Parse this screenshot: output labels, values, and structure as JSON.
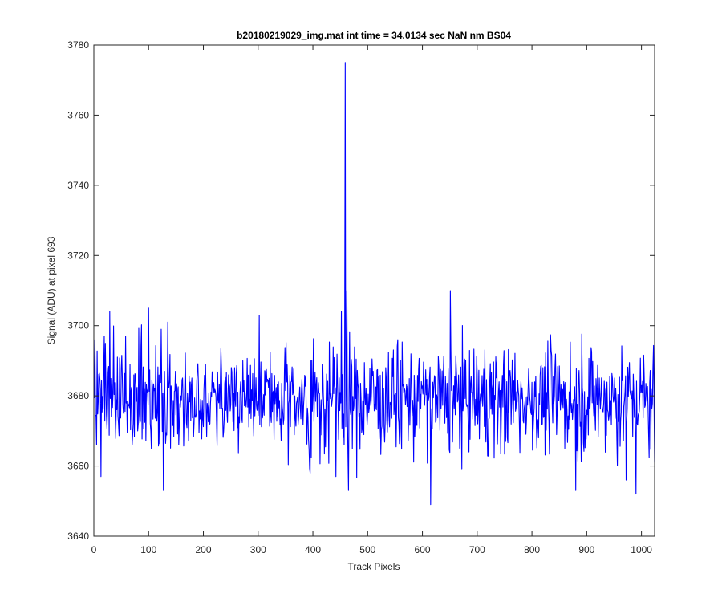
{
  "chart_data": {
    "type": "line",
    "title": "b20180219029_img.mat int time = 34.0134 sec  NaN nm BS04",
    "xlabel": "Track Pixels",
    "ylabel": "Signal (ADU) at pixel 693",
    "xlim": [
      0,
      1024
    ],
    "ylim": [
      3640,
      3780
    ],
    "x_ticks": [
      0,
      100,
      200,
      300,
      400,
      500,
      600,
      700,
      800,
      900,
      1000
    ],
    "y_ticks": [
      3640,
      3660,
      3680,
      3700,
      3720,
      3740,
      3760,
      3780
    ],
    "grid": false,
    "series": [
      {
        "color": "#0000ff",
        "x_start": 1,
        "x_step": 1,
        "noise_mean": 3679,
        "noise_range": [
          3649,
          3710
        ],
        "point_count": 1024,
        "notable_points": [
          {
            "x": 2,
            "y": 3696
          },
          {
            "x": 5,
            "y": 3666
          },
          {
            "x": 13,
            "y": 3657
          },
          {
            "x": 29,
            "y": 3704
          },
          {
            "x": 100,
            "y": 3705
          },
          {
            "x": 127,
            "y": 3653
          },
          {
            "x": 135,
            "y": 3701
          },
          {
            "x": 302,
            "y": 3703
          },
          {
            "x": 395,
            "y": 3658
          },
          {
            "x": 442,
            "y": 3657
          },
          {
            "x": 452,
            "y": 3704
          },
          {
            "x": 459,
            "y": 3775
          },
          {
            "x": 462,
            "y": 3710
          },
          {
            "x": 465,
            "y": 3653
          },
          {
            "x": 555,
            "y": 3696
          },
          {
            "x": 615,
            "y": 3649
          },
          {
            "x": 651,
            "y": 3710
          },
          {
            "x": 880,
            "y": 3653
          },
          {
            "x": 972,
            "y": 3656
          },
          {
            "x": 990,
            "y": 3652
          },
          {
            "x": 1024,
            "y": 3661
          }
        ]
      }
    ]
  }
}
